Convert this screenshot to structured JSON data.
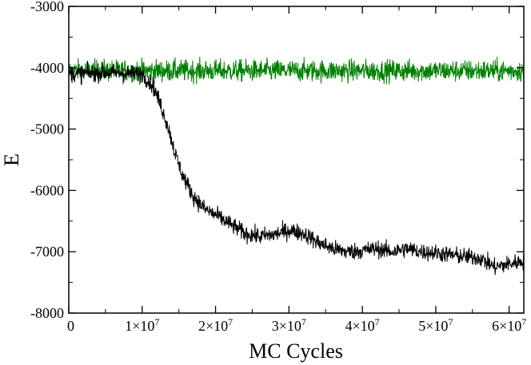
{
  "chart_data": {
    "type": "line",
    "title": "",
    "xlabel": "MC Cycles",
    "ylabel": "E",
    "xlim": [
      0,
      62000000
    ],
    "ylim": [
      -8000,
      -3000
    ],
    "grid": false,
    "legend": "none",
    "x_ticks": [
      {
        "value": 0,
        "mant": "0",
        "exp": ""
      },
      {
        "value": 10000000,
        "mant": "1×10",
        "exp": "7"
      },
      {
        "value": 20000000,
        "mant": "2×10",
        "exp": "7"
      },
      {
        "value": 30000000,
        "mant": "3×10",
        "exp": "7"
      },
      {
        "value": 40000000,
        "mant": "4×10",
        "exp": "7"
      },
      {
        "value": 50000000,
        "mant": "5×10",
        "exp": "7"
      },
      {
        "value": 60000000,
        "mant": "6×10",
        "exp": "7"
      }
    ],
    "y_ticks": [
      {
        "value": -8000,
        "label": "-8000"
      },
      {
        "value": -7000,
        "label": "-7000"
      },
      {
        "value": -6000,
        "label": "-6000"
      },
      {
        "value": -5000,
        "label": "-5000"
      },
      {
        "value": -4000,
        "label": "-4000"
      },
      {
        "value": -3000,
        "label": "-3000"
      }
    ],
    "series": [
      {
        "color": "#008000",
        "noise": 90,
        "x": [
          0,
          62000000
        ],
        "y": [
          -4050,
          -4050
        ]
      },
      {
        "color": "#000000",
        "noise": 70,
        "x": [
          0,
          5000000,
          10000000,
          11500000,
          12500000,
          13500000,
          14500000,
          15500000,
          17000000,
          18500000,
          20000000,
          22000000,
          24000000,
          26000000,
          28000000,
          30000000,
          32000000,
          34000000,
          36000000,
          38000000,
          40000000,
          42000000,
          44000000,
          46000000,
          48000000,
          50000000,
          52000000,
          54000000,
          56000000,
          58000000,
          60000000,
          62000000
        ],
        "y": [
          -4100,
          -4080,
          -4100,
          -4300,
          -4600,
          -4950,
          -5400,
          -5750,
          -6100,
          -6300,
          -6400,
          -6550,
          -6700,
          -6750,
          -6720,
          -6650,
          -6700,
          -6850,
          -6950,
          -7000,
          -6980,
          -6950,
          -7000,
          -6950,
          -7000,
          -7020,
          -7050,
          -7080,
          -7100,
          -7250,
          -7200,
          -7150
        ]
      }
    ]
  }
}
